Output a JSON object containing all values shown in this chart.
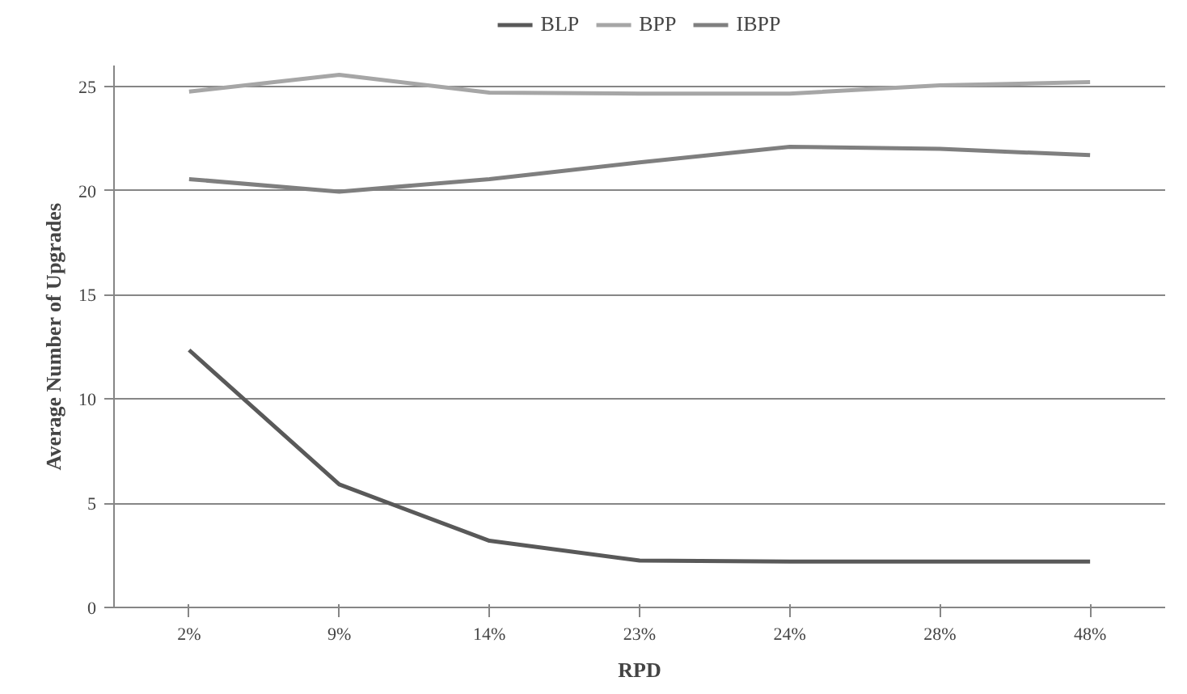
{
  "chart_data": {
    "type": "line",
    "xlabel": "RPD",
    "ylabel": "Average Number of Upgrades",
    "categories": [
      "2%",
      "9%",
      "14%",
      "23%",
      "24%",
      "28%",
      "48%"
    ],
    "series": [
      {
        "name": "BLP",
        "color": "#595959",
        "values": [
          12.35,
          5.9,
          3.2,
          2.25,
          2.2,
          2.2,
          2.2
        ]
      },
      {
        "name": "BPP",
        "color": "#a6a6a6",
        "values": [
          24.75,
          25.55,
          24.7,
          24.65,
          24.65,
          25.05,
          25.2
        ]
      },
      {
        "name": "IBPP",
        "color": "#7f7f7f",
        "values": [
          20.55,
          19.95,
          20.55,
          21.35,
          22.1,
          22.0,
          21.7
        ]
      }
    ],
    "ylim": [
      0,
      26
    ],
    "yticks": [
      0,
      5,
      10,
      15,
      20,
      25
    ],
    "grid": "y",
    "legend": "top",
    "marker": "none",
    "line_style": "solid"
  }
}
